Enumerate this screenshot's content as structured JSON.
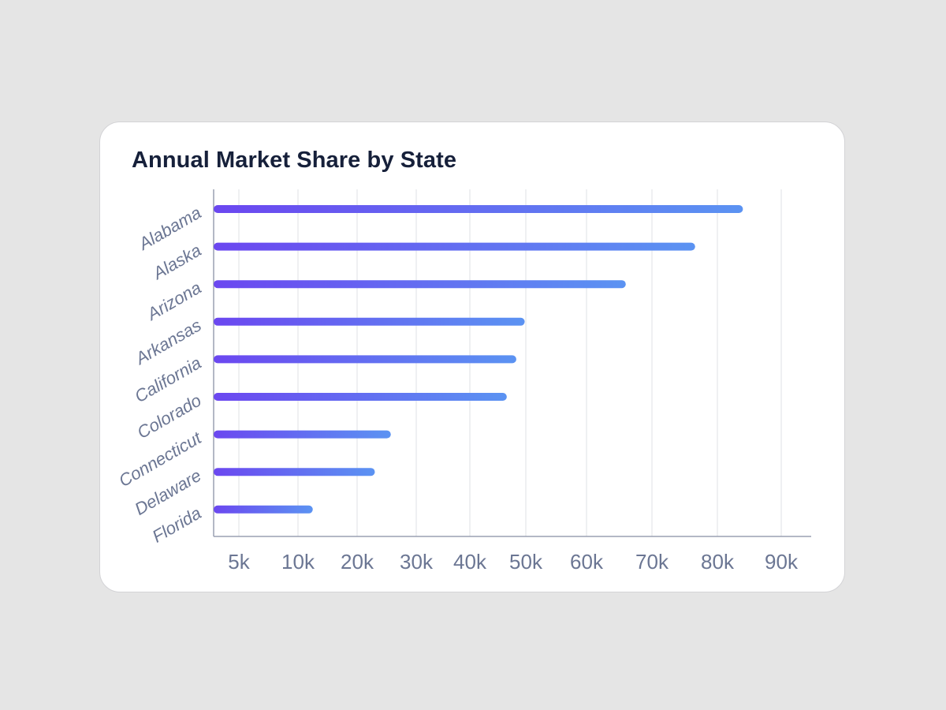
{
  "chart_data": {
    "type": "bar",
    "orientation": "horizontal",
    "title": "Annual Market Share by State",
    "xlabel": "",
    "ylabel": "",
    "categories": [
      "Alabama",
      "Alaska",
      "Arizona",
      "Arkansas",
      "California",
      "Colorado",
      "Connecticut",
      "Delaware",
      "Florida"
    ],
    "values": [
      84000,
      76600,
      66000,
      49800,
      48300,
      46600,
      25700,
      23000,
      12500
    ],
    "xticks": [
      {
        "value": 5000,
        "label": "5k"
      },
      {
        "value": 10000,
        "label": "10k"
      },
      {
        "value": 20000,
        "label": "20k"
      },
      {
        "value": 30000,
        "label": "30k"
      },
      {
        "value": 40000,
        "label": "40k"
      },
      {
        "value": 50000,
        "label": "50k"
      },
      {
        "value": 60000,
        "label": "60k"
      },
      {
        "value": 70000,
        "label": "70k"
      },
      {
        "value": 80000,
        "label": "80k"
      },
      {
        "value": 90000,
        "label": "90k"
      }
    ],
    "xlim": [
      0,
      95000
    ],
    "grid": true,
    "legend": "none",
    "colors": {
      "bar_start": "#6b47f0",
      "bar_end": "#5b93f2",
      "grid": "#e4e6ea",
      "axis": "#9aa0b2",
      "label": "#6b7693",
      "title": "#16203a"
    }
  }
}
